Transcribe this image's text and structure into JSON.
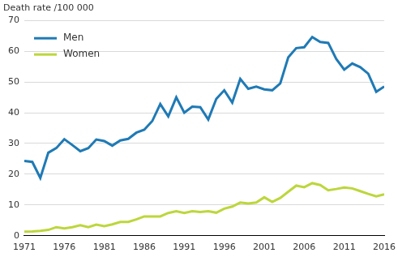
{
  "chart_data": {
    "type": "line",
    "ylabel": "Death rate /100 000",
    "x": [
      1971,
      1972,
      1973,
      1974,
      1975,
      1976,
      1977,
      1978,
      1979,
      1980,
      1981,
      1982,
      1983,
      1984,
      1985,
      1986,
      1987,
      1988,
      1989,
      1990,
      1991,
      1992,
      1993,
      1994,
      1995,
      1996,
      1997,
      1998,
      1999,
      2000,
      2001,
      2002,
      2003,
      2004,
      2005,
      2006,
      2007,
      2008,
      2009,
      2010,
      2011,
      2012,
      2013,
      2014,
      2015,
      2016
    ],
    "series": [
      {
        "name": "Men",
        "color": "#1f7ab5",
        "values": [
          24.3,
          24.0,
          18.8,
          27.0,
          28.5,
          31.4,
          29.5,
          27.5,
          28.5,
          31.3,
          30.8,
          29.3,
          31.0,
          31.5,
          33.5,
          34.5,
          37.3,
          42.8,
          38.8,
          45.0,
          40.0,
          42.0,
          41.8,
          37.8,
          44.5,
          47.3,
          43.3,
          51.0,
          47.8,
          48.5,
          47.6,
          47.3,
          49.5,
          58.0,
          61.0,
          61.3,
          64.6,
          63.0,
          62.7,
          57.5,
          54.0,
          56.0,
          54.8,
          52.7,
          46.8,
          48.5
        ]
      },
      {
        "name": "Women",
        "color": "#bdd63c",
        "values": [
          1.3,
          1.4,
          1.6,
          1.9,
          2.8,
          2.4,
          2.8,
          3.4,
          2.8,
          3.6,
          3.1,
          3.7,
          4.5,
          4.5,
          5.3,
          6.3,
          6.3,
          6.3,
          7.4,
          8.0,
          7.4,
          8.0,
          7.7,
          8.0,
          7.5,
          8.8,
          9.5,
          10.8,
          10.5,
          10.8,
          12.5,
          11.0,
          12.3,
          14.3,
          16.3,
          15.8,
          17.1,
          16.5,
          14.8,
          15.2,
          15.7,
          15.4,
          14.5,
          13.6,
          12.8,
          13.5
        ]
      }
    ],
    "xlim": [
      1971,
      2016
    ],
    "xticks": [
      1971,
      1976,
      1981,
      1986,
      1991,
      1996,
      2001,
      2006,
      2011,
      2016
    ],
    "ylim": [
      0,
      70
    ],
    "yticks": [
      0,
      10,
      20,
      30,
      40,
      50,
      60,
      70
    ],
    "grid": true,
    "legend": "upper left"
  }
}
